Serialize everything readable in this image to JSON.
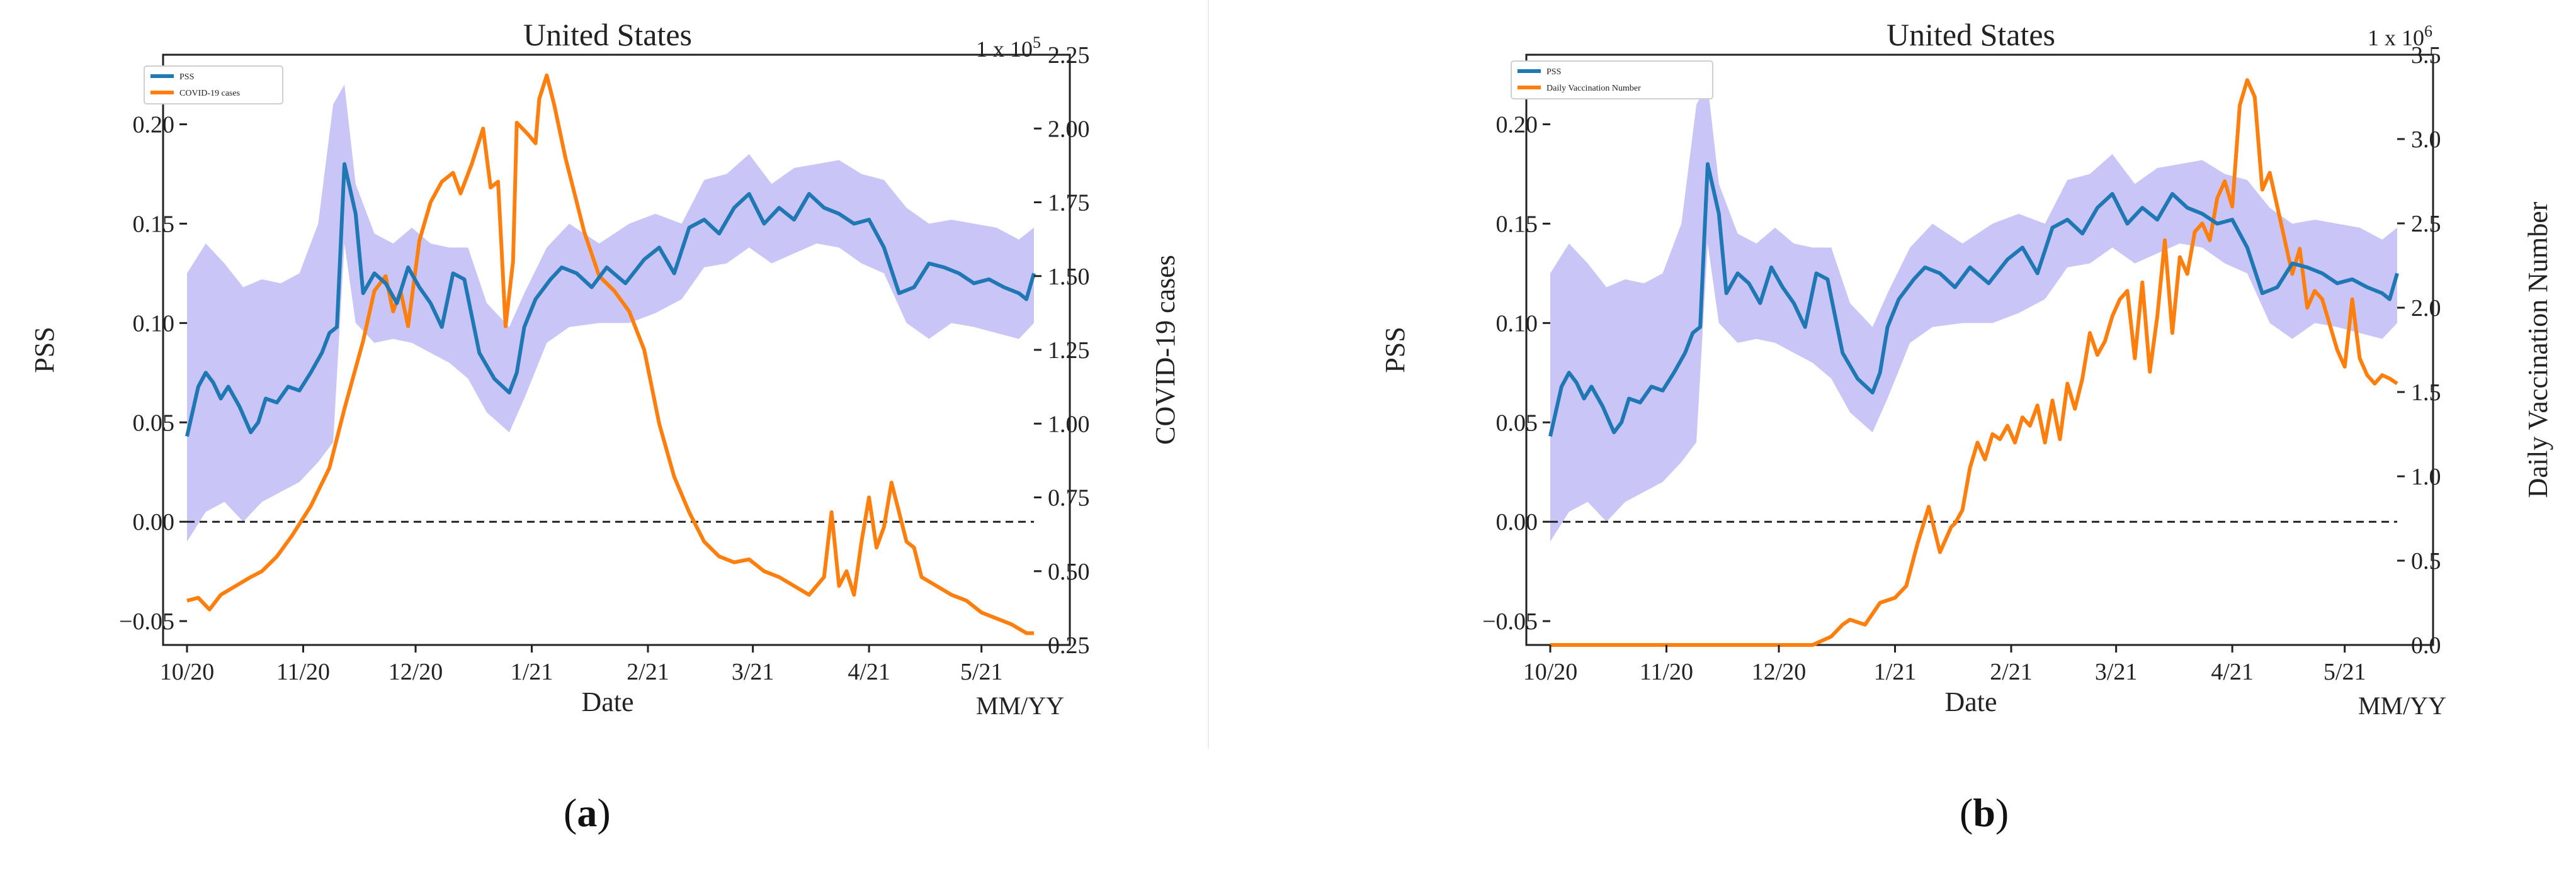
{
  "colors": {
    "pss": "#1f77b4",
    "band": "#c9c6f7",
    "secondary": "#ff7f0e",
    "zero_line": "#222222"
  },
  "panels": [
    {
      "label": "a",
      "title": "United States",
      "scale_note": "1 x 10",
      "scale_exp": "5",
      "legend": [
        "PSS",
        "COVID-19 cases"
      ],
      "xlabel": "Date",
      "xunit": "MM/YY",
      "ylabel_left": "PSS",
      "ylabel_right": "COVID-19 cases",
      "x_ticks": [
        "10/20",
        "11/20",
        "12/20",
        "1/21",
        "2/21",
        "3/21",
        "4/21",
        "5/21"
      ],
      "y_left_ticks": [
        "−0.05",
        "0.00",
        "0.05",
        "0.10",
        "0.15",
        "0.20"
      ],
      "y_right_ticks": [
        "0.25",
        "0.50",
        "0.75",
        "1.00",
        "1.25",
        "1.50",
        "1.75",
        "2.00",
        "2.25"
      ]
    },
    {
      "label": "b",
      "title": "United States",
      "scale_note": "1 x 10",
      "scale_exp": "6",
      "legend": [
        "PSS",
        "Daily Vaccination Number"
      ],
      "xlabel": "Date",
      "xunit": "MM/YY",
      "ylabel_left": "PSS",
      "ylabel_right": "Daily Vaccination Number",
      "x_ticks": [
        "10/20",
        "11/20",
        "12/20",
        "1/21",
        "2/21",
        "3/21",
        "4/21",
        "5/21"
      ],
      "y_left_ticks": [
        "−0.05",
        "0.00",
        "0.05",
        "0.10",
        "0.15",
        "0.20"
      ],
      "y_right_ticks": [
        "0.0",
        "0.5",
        "1.0",
        "1.5",
        "2.0",
        "2.5",
        "3.0",
        "3.5"
      ]
    }
  ],
  "chart_data": [
    {
      "type": "line",
      "title": "United States",
      "xlabel": "Date",
      "ylabel": "PSS",
      "y2label": "COVID-19 cases (x 1e5)",
      "x_range_days": [
        0,
        226
      ],
      "x_tick_days": [
        0,
        31,
        61,
        92,
        123,
        151,
        182,
        212
      ],
      "ylim": [
        -0.062,
        0.235
      ],
      "y2lim": [
        0.25,
        2.25
      ],
      "series": [
        {
          "name": "PSS",
          "axis": "left",
          "days": [
            0,
            3,
            5,
            7,
            9,
            11,
            14,
            17,
            19,
            21,
            24,
            27,
            30,
            33,
            36,
            38,
            40,
            42,
            45,
            47,
            50,
            53,
            56,
            59,
            62,
            65,
            68,
            71,
            74,
            78,
            82,
            86,
            88,
            90,
            93,
            97,
            100,
            104,
            108,
            112,
            117,
            122,
            126,
            130,
            134,
            138,
            142,
            146,
            150,
            154,
            158,
            162,
            166,
            170,
            174,
            178,
            182,
            186,
            190,
            194,
            198,
            202,
            206,
            210,
            214,
            218,
            222,
            224,
            226
          ],
          "values": [
            0.043,
            0.068,
            0.075,
            0.07,
            0.062,
            0.068,
            0.058,
            0.045,
            0.05,
            0.062,
            0.06,
            0.068,
            0.066,
            0.075,
            0.085,
            0.095,
            0.098,
            0.18,
            0.155,
            0.115,
            0.125,
            0.12,
            0.11,
            0.128,
            0.118,
            0.11,
            0.098,
            0.125,
            0.122,
            0.085,
            0.072,
            0.065,
            0.075,
            0.098,
            0.112,
            0.122,
            0.128,
            0.125,
            0.118,
            0.128,
            0.12,
            0.132,
            0.138,
            0.125,
            0.148,
            0.152,
            0.145,
            0.158,
            0.165,
            0.15,
            0.158,
            0.152,
            0.165,
            0.158,
            0.155,
            0.15,
            0.152,
            0.138,
            0.115,
            0.118,
            0.13,
            0.128,
            0.125,
            0.12,
            0.122,
            0.118,
            0.115,
            0.112,
            0.125
          ]
        },
        {
          "name": "PSS band upper",
          "axis": "left",
          "days": [
            0,
            5,
            10,
            15,
            20,
            25,
            30,
            35,
            39,
            42,
            45,
            50,
            55,
            60,
            65,
            70,
            75,
            80,
            86,
            90,
            96,
            102,
            110,
            118,
            125,
            132,
            138,
            144,
            150,
            156,
            162,
            168,
            174,
            180,
            186,
            192,
            198,
            204,
            210,
            216,
            222,
            226
          ],
          "values": [
            0.125,
            0.14,
            0.13,
            0.118,
            0.122,
            0.12,
            0.125,
            0.15,
            0.21,
            0.22,
            0.17,
            0.145,
            0.14,
            0.148,
            0.14,
            0.138,
            0.138,
            0.11,
            0.098,
            0.115,
            0.138,
            0.15,
            0.14,
            0.15,
            0.155,
            0.15,
            0.172,
            0.175,
            0.185,
            0.17,
            0.178,
            0.18,
            0.182,
            0.175,
            0.172,
            0.158,
            0.15,
            0.152,
            0.15,
            0.148,
            0.142,
            0.148
          ]
        },
        {
          "name": "PSS band lower",
          "axis": "left",
          "days": [
            0,
            5,
            10,
            15,
            20,
            25,
            30,
            35,
            39,
            42,
            45,
            50,
            55,
            60,
            65,
            70,
            75,
            80,
            86,
            90,
            96,
            102,
            110,
            118,
            125,
            132,
            138,
            144,
            150,
            156,
            162,
            168,
            174,
            180,
            186,
            192,
            198,
            204,
            210,
            216,
            222,
            226
          ],
          "values": [
            -0.01,
            0.005,
            0.01,
            0.0,
            0.01,
            0.015,
            0.02,
            0.03,
            0.04,
            0.14,
            0.1,
            0.09,
            0.092,
            0.09,
            0.085,
            0.08,
            0.072,
            0.055,
            0.045,
            0.062,
            0.09,
            0.098,
            0.1,
            0.1,
            0.105,
            0.112,
            0.128,
            0.13,
            0.138,
            0.13,
            0.135,
            0.14,
            0.138,
            0.13,
            0.125,
            0.1,
            0.092,
            0.1,
            0.098,
            0.095,
            0.092,
            0.1
          ]
        },
        {
          "name": "COVID-19 cases",
          "axis": "right",
          "days": [
            0,
            3,
            6,
            9,
            13,
            17,
            20,
            24,
            28,
            33,
            38,
            42,
            47,
            50,
            53,
            55,
            57,
            59,
            62,
            65,
            68,
            71,
            73,
            76,
            79,
            81,
            83,
            85,
            87,
            88,
            91,
            93,
            94,
            96,
            98,
            101,
            103,
            106,
            110,
            114,
            118,
            122,
            126,
            130,
            134,
            138,
            142,
            146,
            150,
            154,
            158,
            162,
            166,
            170,
            172,
            174,
            176,
            178,
            180,
            182,
            184,
            186,
            188,
            190,
            192,
            194,
            196,
            200,
            204,
            208,
            212,
            216,
            220,
            224,
            226
          ],
          "values": [
            0.4,
            0.41,
            0.37,
            0.42,
            0.45,
            0.48,
            0.5,
            0.55,
            0.62,
            0.72,
            0.85,
            1.05,
            1.28,
            1.45,
            1.5,
            1.38,
            1.45,
            1.33,
            1.62,
            1.75,
            1.82,
            1.85,
            1.78,
            1.88,
            2.0,
            1.8,
            1.82,
            1.33,
            1.55,
            2.02,
            1.98,
            1.95,
            2.1,
            2.18,
            2.08,
            1.9,
            1.8,
            1.65,
            1.5,
            1.45,
            1.38,
            1.25,
            1.0,
            0.82,
            0.7,
            0.6,
            0.55,
            0.53,
            0.54,
            0.5,
            0.48,
            0.45,
            0.42,
            0.48,
            0.7,
            0.45,
            0.5,
            0.42,
            0.6,
            0.75,
            0.58,
            0.65,
            0.8,
            0.7,
            0.6,
            0.58,
            0.48,
            0.45,
            0.42,
            0.4,
            0.36,
            0.34,
            0.32,
            0.29,
            0.29
          ]
        }
      ]
    },
    {
      "type": "line",
      "title": "United States",
      "xlabel": "Date",
      "ylabel": "PSS",
      "y2label": "Daily Vaccination Number (x 1e6)",
      "x_range_days": [
        0,
        226
      ],
      "x_tick_days": [
        0,
        31,
        61,
        92,
        123,
        151,
        182,
        212
      ],
      "ylim": [
        -0.062,
        0.235
      ],
      "y2lim": [
        0.0,
        3.5
      ],
      "series": [
        {
          "name": "PSS",
          "axis": "left",
          "note": "same PSS series as panel (a)"
        },
        {
          "name": "Daily Vaccination Number",
          "axis": "right",
          "days": [
            0,
            30,
            60,
            70,
            75,
            78,
            80,
            84,
            88,
            92,
            95,
            98,
            101,
            104,
            107,
            108,
            110,
            112,
            114,
            116,
            118,
            120,
            122,
            124,
            126,
            128,
            130,
            132,
            134,
            136,
            138,
            140,
            142,
            144,
            146,
            148,
            150,
            152,
            154,
            156,
            158,
            160,
            162,
            164,
            166,
            168,
            170,
            172,
            174,
            176,
            178,
            180,
            182,
            184,
            186,
            188,
            190,
            192,
            194,
            196,
            198,
            200,
            202,
            204,
            206,
            208,
            210,
            212,
            214,
            216,
            218,
            220,
            222,
            224,
            226
          ],
          "values": [
            0.0,
            0.0,
            0.0,
            0.0,
            0.05,
            0.12,
            0.15,
            0.12,
            0.25,
            0.28,
            0.35,
            0.6,
            0.82,
            0.55,
            0.7,
            0.72,
            0.8,
            1.05,
            1.2,
            1.1,
            1.25,
            1.22,
            1.3,
            1.2,
            1.35,
            1.3,
            1.42,
            1.2,
            1.45,
            1.22,
            1.55,
            1.4,
            1.58,
            1.85,
            1.72,
            1.8,
            1.95,
            2.05,
            2.1,
            1.7,
            2.15,
            1.62,
            1.95,
            2.4,
            1.85,
            2.3,
            2.2,
            2.45,
            2.5,
            2.4,
            2.65,
            2.75,
            2.6,
            3.2,
            3.35,
            3.25,
            2.7,
            2.8,
            2.6,
            2.4,
            2.2,
            2.35,
            2.0,
            2.1,
            2.05,
            1.9,
            1.75,
            1.65,
            2.05,
            1.7,
            1.6,
            1.55,
            1.6,
            1.58,
            1.55
          ]
        }
      ]
    }
  ]
}
